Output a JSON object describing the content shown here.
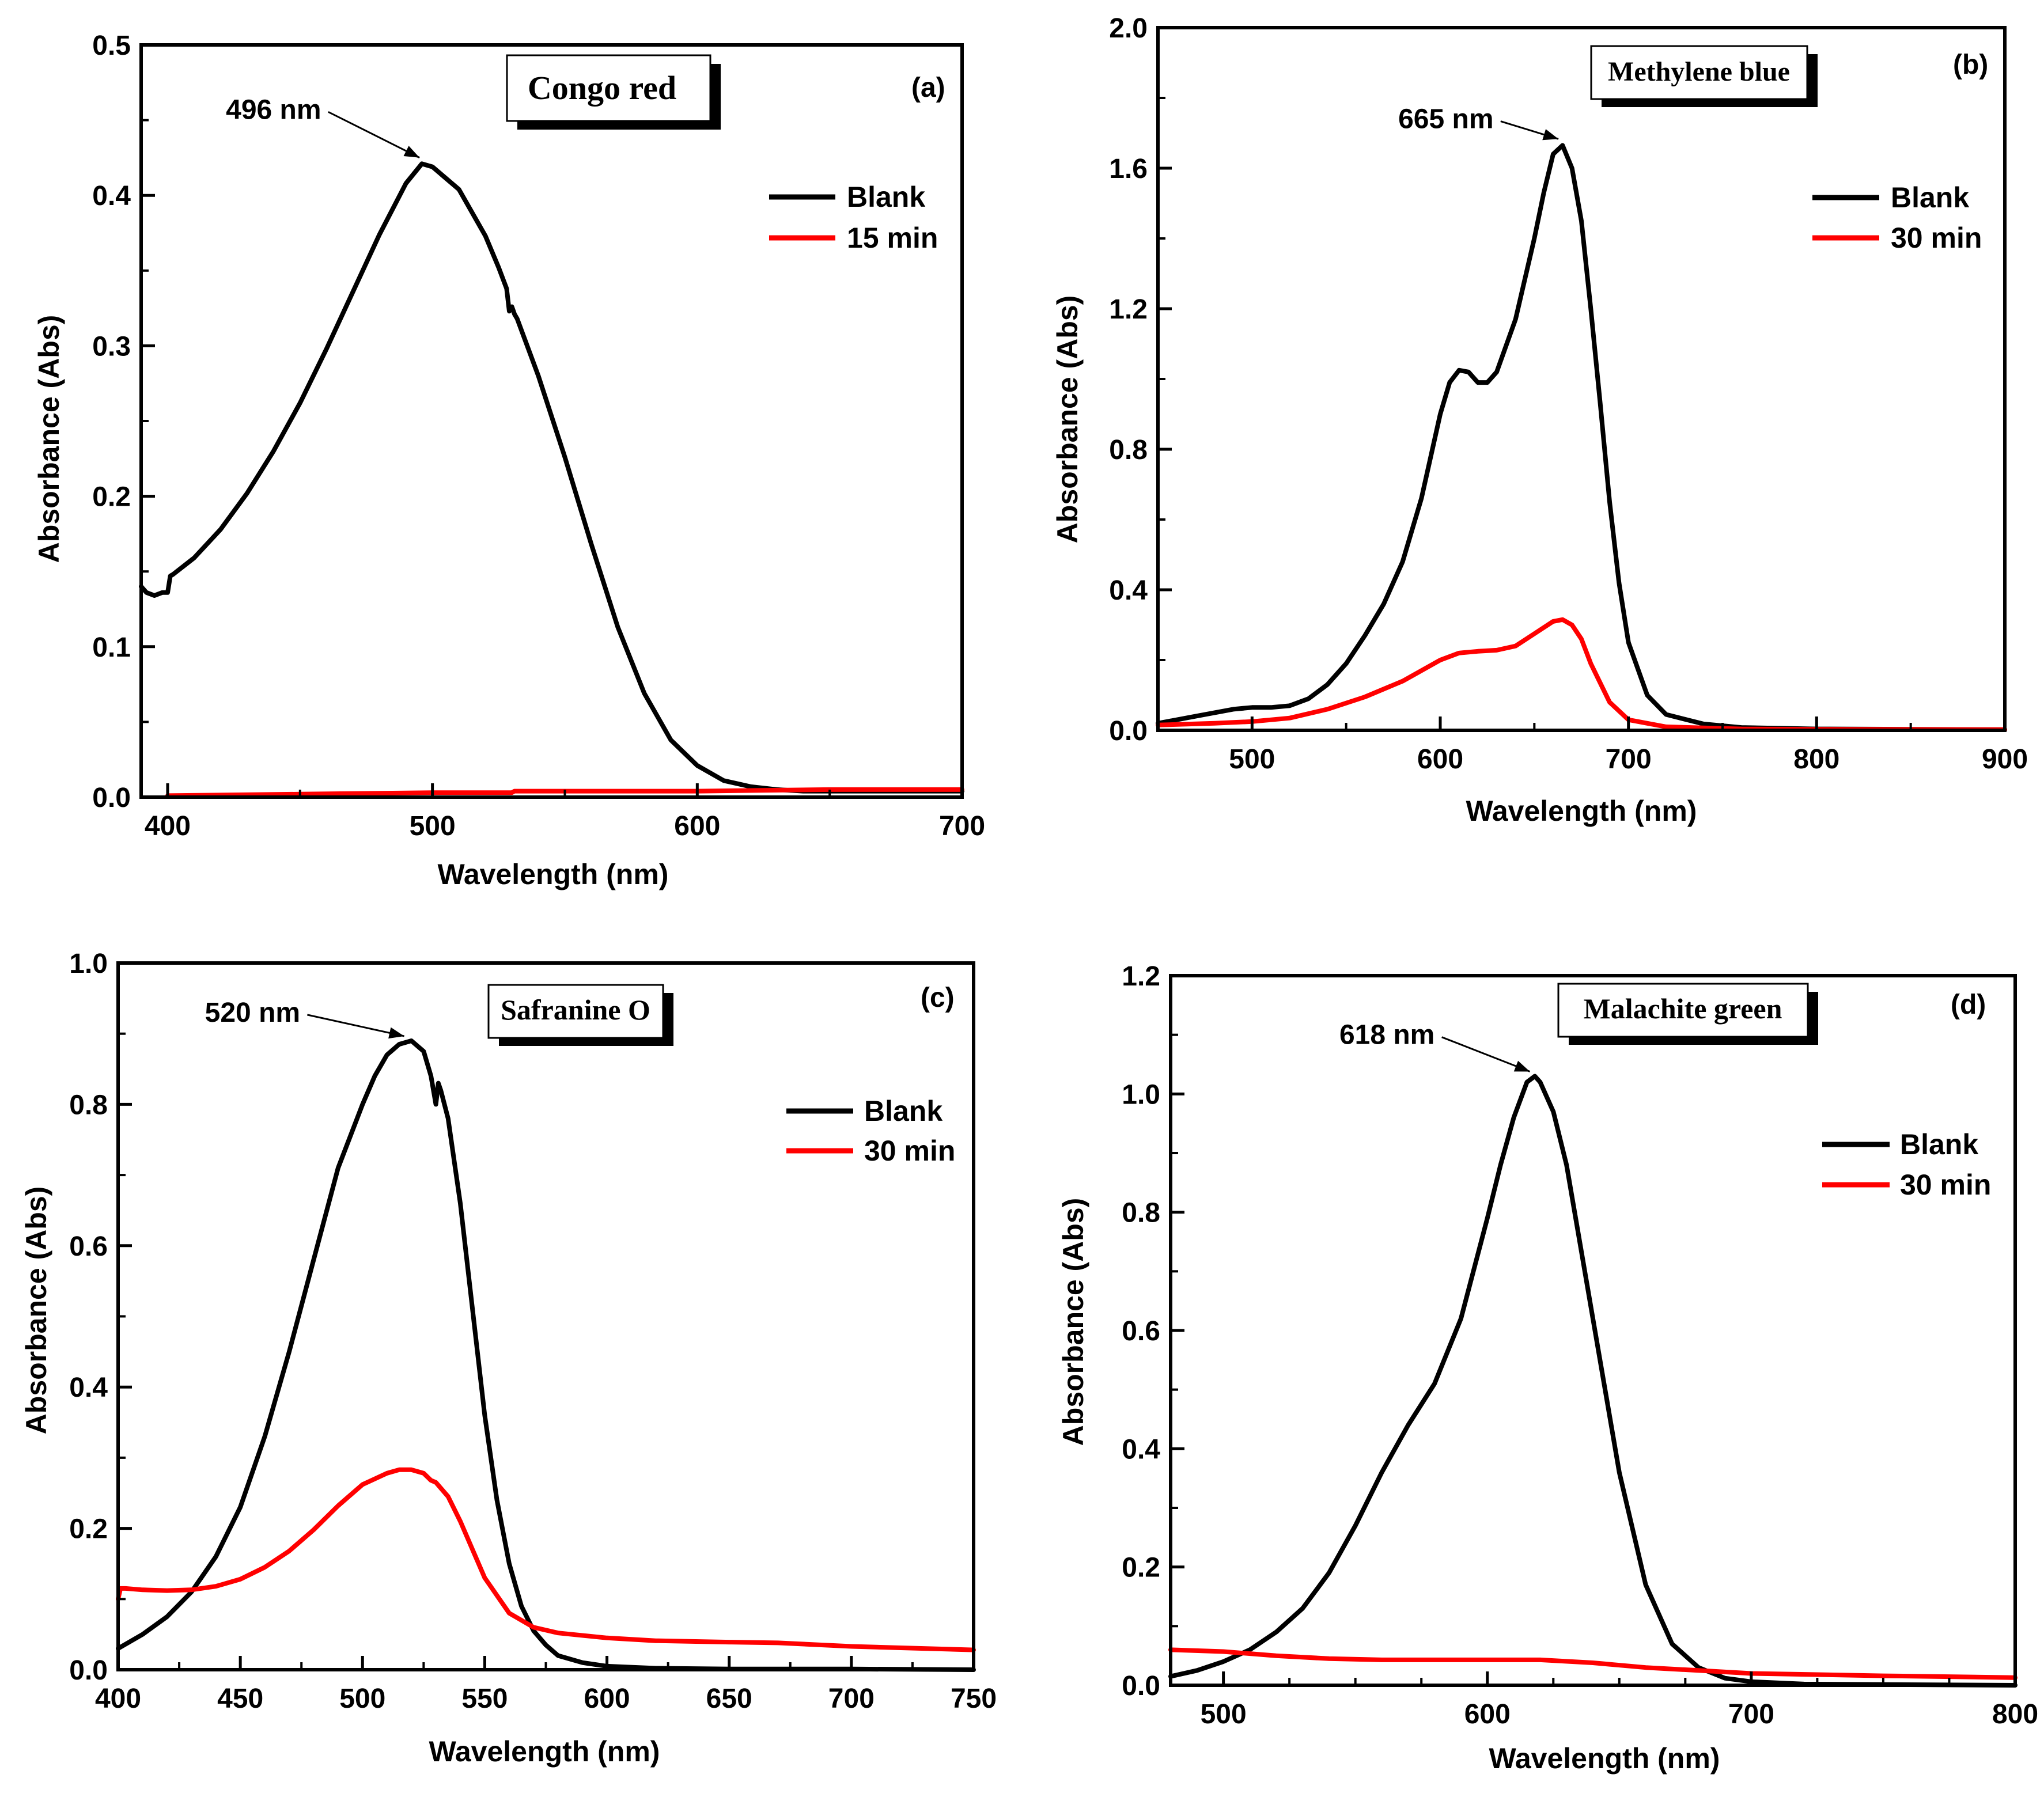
{
  "figure": {
    "background": "#ffffff"
  },
  "chart_data": [
    {
      "type": "line",
      "panel": "(a)",
      "title": "Congo red",
      "xlabel": "Wavelength (nm)",
      "ylabel": "Absorbance (Abs)",
      "xlim": [
        390,
        700
      ],
      "ylim": [
        0,
        0.5
      ],
      "xticks": [
        400,
        500,
        600,
        700
      ],
      "yticks": [
        0.0,
        0.1,
        0.2,
        0.3,
        0.4,
        0.5
      ],
      "ytick_labels": [
        "0.0",
        "0.1",
        "0.2",
        "0.3",
        "0.4",
        "0.5"
      ],
      "xminor": [
        450,
        550,
        650
      ],
      "yminor": [
        0.05,
        0.15,
        0.25,
        0.35,
        0.45
      ],
      "peak_label": "496 nm",
      "peak_point": [
        496,
        0.422
      ],
      "peak_text_at": [
        440,
        0.457
      ],
      "legend": [
        "Blank",
        "15 min"
      ],
      "series": [
        {
          "name": "Blank",
          "color": "#000000",
          "x": [
            390,
            392,
            395,
            398,
            400,
            401,
            402,
            410,
            420,
            430,
            440,
            450,
            460,
            470,
            480,
            490,
            496,
            500,
            510,
            520,
            525,
            528,
            529,
            530,
            531,
            532,
            540,
            550,
            560,
            570,
            580,
            590,
            600,
            610,
            620,
            630,
            640,
            650,
            670,
            700
          ],
          "y": [
            0.14,
            0.136,
            0.134,
            0.136,
            0.136,
            0.147,
            0.148,
            0.159,
            0.178,
            0.202,
            0.23,
            0.262,
            0.298,
            0.336,
            0.374,
            0.408,
            0.421,
            0.419,
            0.404,
            0.373,
            0.352,
            0.338,
            0.323,
            0.326,
            0.321,
            0.318,
            0.28,
            0.226,
            0.168,
            0.113,
            0.069,
            0.038,
            0.021,
            0.011,
            0.007,
            0.005,
            0.004,
            0.004,
            0.004,
            0.004
          ]
        },
        {
          "name": "15 min",
          "color": "#ff0000",
          "x": [
            400,
            450,
            500,
            530,
            531,
            600,
            650,
            700
          ],
          "y": [
            0.001,
            0.002,
            0.003,
            0.003,
            0.004,
            0.004,
            0.005,
            0.005
          ]
        }
      ]
    },
    {
      "type": "line",
      "panel": "(b)",
      "title": "Methylene blue",
      "xlabel": "Wavelength (nm)",
      "ylabel": "Absorbance (Abs)",
      "xlim": [
        450,
        900
      ],
      "ylim": [
        0,
        2.0
      ],
      "xticks": [
        500,
        600,
        700,
        800,
        900
      ],
      "yticks": [
        0.0,
        0.4,
        0.8,
        1.2,
        1.6,
        2.0
      ],
      "ytick_labels": [
        "0.0",
        "0.4",
        "0.8",
        "1.2",
        "1.6",
        "2.0"
      ],
      "xminor": [
        450,
        550,
        650,
        750,
        850
      ],
      "yminor": [
        0.2,
        0.6,
        1.0,
        1.4,
        1.8
      ],
      "peak_label": "665 nm",
      "peak_point": [
        664,
        1.67
      ],
      "peak_text_at": [
        603,
        1.74
      ],
      "legend": [
        "Blank",
        "30 min"
      ],
      "series": [
        {
          "name": "Blank",
          "color": "#000000",
          "x": [
            450,
            470,
            490,
            500,
            510,
            520,
            530,
            540,
            550,
            560,
            570,
            580,
            590,
            600,
            605,
            610,
            615,
            620,
            625,
            630,
            640,
            650,
            655,
            660,
            665,
            670,
            675,
            680,
            685,
            690,
            695,
            700,
            710,
            720,
            740,
            760,
            800,
            900
          ],
          "y": [
            0.02,
            0.04,
            0.06,
            0.065,
            0.065,
            0.07,
            0.09,
            0.13,
            0.19,
            0.27,
            0.36,
            0.48,
            0.66,
            0.9,
            0.99,
            1.025,
            1.02,
            0.99,
            0.99,
            1.02,
            1.17,
            1.4,
            1.53,
            1.64,
            1.665,
            1.6,
            1.45,
            1.2,
            0.93,
            0.65,
            0.42,
            0.25,
            0.1,
            0.045,
            0.018,
            0.008,
            0.004,
            0.002
          ]
        },
        {
          "name": "30 min",
          "color": "#ff0000",
          "x": [
            450,
            480,
            500,
            520,
            540,
            560,
            580,
            600,
            610,
            620,
            630,
            640,
            650,
            660,
            665,
            670,
            675,
            680,
            690,
            700,
            720,
            760,
            800,
            900
          ],
          "y": [
            0.015,
            0.02,
            0.025,
            0.035,
            0.06,
            0.095,
            0.14,
            0.2,
            0.22,
            0.225,
            0.228,
            0.24,
            0.275,
            0.31,
            0.315,
            0.3,
            0.26,
            0.19,
            0.08,
            0.03,
            0.01,
            0.004,
            0.003,
            0.002
          ]
        }
      ]
    },
    {
      "type": "line",
      "panel": "(c)",
      "title": "Safranine O",
      "xlabel": "Wavelength (nm)",
      "ylabel": "Absorbance (Abs)",
      "xlim": [
        400,
        750
      ],
      "ylim": [
        0,
        1.0
      ],
      "xticks": [
        400,
        450,
        500,
        550,
        600,
        650,
        700,
        750
      ],
      "yticks": [
        0.0,
        0.2,
        0.4,
        0.6,
        0.8,
        1.0
      ],
      "ytick_labels": [
        "0.0",
        "0.2",
        "0.4",
        "0.6",
        "0.8",
        "1.0"
      ],
      "xminor": [
        425,
        475,
        525,
        575,
        625,
        675,
        725
      ],
      "yminor": [
        0.1,
        0.3,
        0.5,
        0.7,
        0.9
      ],
      "peak_label": "520 nm",
      "peak_point": [
        518,
        0.89
      ],
      "peak_text_at": [
        455,
        0.93
      ],
      "legend": [
        "Blank",
        "30 min"
      ],
      "series": [
        {
          "name": "Blank",
          "color": "#000000",
          "x": [
            400,
            410,
            420,
            430,
            440,
            450,
            460,
            470,
            480,
            490,
            500,
            505,
            510,
            515,
            520,
            525,
            528,
            530,
            531,
            532,
            535,
            540,
            545,
            550,
            555,
            560,
            565,
            570,
            575,
            580,
            590,
            600,
            620,
            650,
            700,
            750
          ],
          "y": [
            0.03,
            0.05,
            0.075,
            0.11,
            0.16,
            0.23,
            0.33,
            0.45,
            0.58,
            0.71,
            0.8,
            0.84,
            0.87,
            0.885,
            0.89,
            0.875,
            0.84,
            0.8,
            0.83,
            0.82,
            0.78,
            0.66,
            0.51,
            0.36,
            0.24,
            0.15,
            0.09,
            0.055,
            0.035,
            0.02,
            0.01,
            0.005,
            0.002,
            0.001,
            0.001,
            0.0
          ]
        },
        {
          "name": "30 min",
          "color": "#ff0000",
          "x": [
            400,
            401,
            403,
            410,
            420,
            430,
            440,
            450,
            460,
            470,
            480,
            490,
            500,
            510,
            515,
            520,
            525,
            528,
            530,
            535,
            540,
            545,
            550,
            560,
            570,
            580,
            600,
            620,
            650,
            670,
            700,
            750
          ],
          "y": [
            0.1,
            0.115,
            0.115,
            0.113,
            0.112,
            0.113,
            0.118,
            0.128,
            0.145,
            0.168,
            0.198,
            0.232,
            0.262,
            0.278,
            0.283,
            0.283,
            0.278,
            0.268,
            0.265,
            0.245,
            0.21,
            0.17,
            0.13,
            0.08,
            0.06,
            0.052,
            0.045,
            0.041,
            0.039,
            0.038,
            0.033,
            0.028
          ]
        }
      ]
    },
    {
      "type": "line",
      "panel": "(d)",
      "title": "Malachite green",
      "xlabel": "Wavelength (nm)",
      "ylabel": "Absorbance (Abs)",
      "xlim": [
        480,
        800
      ],
      "ylim": [
        0,
        1.2
      ],
      "xticks": [
        500,
        600,
        700,
        800
      ],
      "yticks": [
        0.0,
        0.2,
        0.4,
        0.6,
        0.8,
        1.0,
        1.2
      ],
      "ytick_labels": [
        "0.0",
        "0.2",
        "0.4",
        "0.6",
        "0.8",
        "1.0",
        "1.2"
      ],
      "xminor": [
        525,
        550,
        575,
        625,
        650,
        675,
        725,
        750,
        775
      ],
      "yminor": [
        0.1,
        0.3,
        0.5,
        0.7,
        0.9,
        1.1
      ],
      "peak_label": "618 nm",
      "peak_point": [
        617,
        1.03
      ],
      "peak_text_at": [
        562,
        1.1
      ],
      "legend": [
        "Blank",
        "30 min"
      ],
      "series": [
        {
          "name": "Blank",
          "color": "#000000",
          "x": [
            480,
            490,
            500,
            510,
            520,
            530,
            540,
            550,
            560,
            570,
            580,
            590,
            600,
            605,
            610,
            615,
            618,
            620,
            625,
            630,
            640,
            650,
            660,
            670,
            680,
            690,
            700,
            720,
            760,
            800
          ],
          "y": [
            0.015,
            0.025,
            0.04,
            0.06,
            0.09,
            0.13,
            0.19,
            0.27,
            0.36,
            0.44,
            0.51,
            0.62,
            0.79,
            0.88,
            0.96,
            1.02,
            1.03,
            1.02,
            0.97,
            0.88,
            0.62,
            0.36,
            0.17,
            0.07,
            0.03,
            0.012,
            0.006,
            0.002,
            0.001,
            0.0
          ]
        },
        {
          "name": "30 min",
          "color": "#ff0000",
          "x": [
            480,
            500,
            520,
            540,
            560,
            580,
            600,
            620,
            640,
            660,
            680,
            700,
            750,
            800
          ],
          "y": [
            0.06,
            0.057,
            0.05,
            0.045,
            0.043,
            0.043,
            0.043,
            0.043,
            0.038,
            0.03,
            0.025,
            0.02,
            0.016,
            0.013
          ]
        }
      ]
    }
  ]
}
